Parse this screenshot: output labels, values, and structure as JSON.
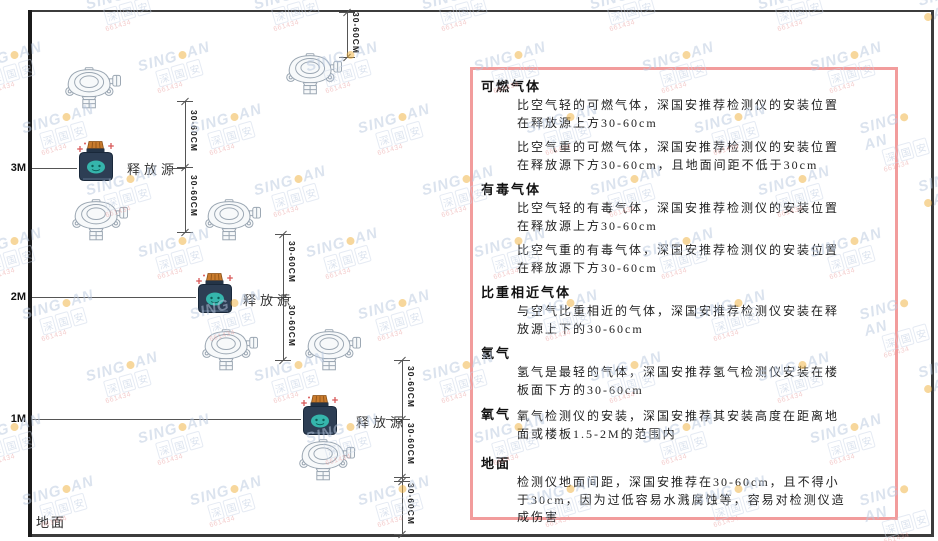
{
  "watermark": {
    "brand_prefix": "SING",
    "brand_suffix": "AN",
    "cjk_chars": [
      "深",
      "国",
      "安"
    ],
    "code_text": "661434"
  },
  "diagram": {
    "levels": [
      {
        "label": "3M"
      },
      {
        "label": "2M"
      },
      {
        "label": "1M"
      }
    ],
    "ground_label": "地面",
    "source_label": "释放源",
    "dim_label": "30-60CM"
  },
  "panel": {
    "sections": [
      {
        "heading": "可燃气体",
        "paragraphs": [
          "比空气轻的可燃气体，深国安推荐检测仪的安装位置在释放源上方30-60cm",
          "比空气重的可燃气体，深国安推荐检测仪的安装位置在释放源下方30-60cm，且地面间距不低于30cm"
        ]
      },
      {
        "heading": "有毒气体",
        "paragraphs": [
          "比空气轻的有毒气体，深国安推荐检测仪的安装位置在释放源上方30-60cm",
          "比空气重的有毒气体，深国安推荐检测仪的安装位置在释放源下方30-60cm"
        ]
      },
      {
        "heading": "比重相近气体",
        "paragraphs": [
          "与空气比重相近的气体，深国安推荐检测仪安装在释放源上下的30-60cm"
        ]
      },
      {
        "heading": "氢气",
        "paragraphs": [
          "氢气是最轻的气体，深国安推荐氢气检测仪安装在楼板面下方的30-60cm"
        ]
      },
      {
        "heading": "氧气",
        "paragraphs": [
          "氧气检测仪的安装，深国安推荐其安装高度在距离地面或楼板1.5-2M的范围内"
        ]
      },
      {
        "heading": "地面",
        "paragraphs": [
          "检测仪地面间距，深国安推荐在30-60cm，且不得小于30cm，因为过低容易水溅腐蚀等，容易对检测仪造成伤害"
        ]
      }
    ]
  },
  "colors": {
    "panel_border": "#f29c9c",
    "structure_line": "#3c3c3c",
    "dimension_line": "#555555",
    "source_body": "#2d3e54",
    "source_cap": "#c97b2d",
    "source_drop": "#35b5ac",
    "sparkle_red": "#d95b5b",
    "watermark_blue": "#b9c8df",
    "watermark_dot": "#f0b13c",
    "watermark_code_red": "#e89a9a"
  }
}
